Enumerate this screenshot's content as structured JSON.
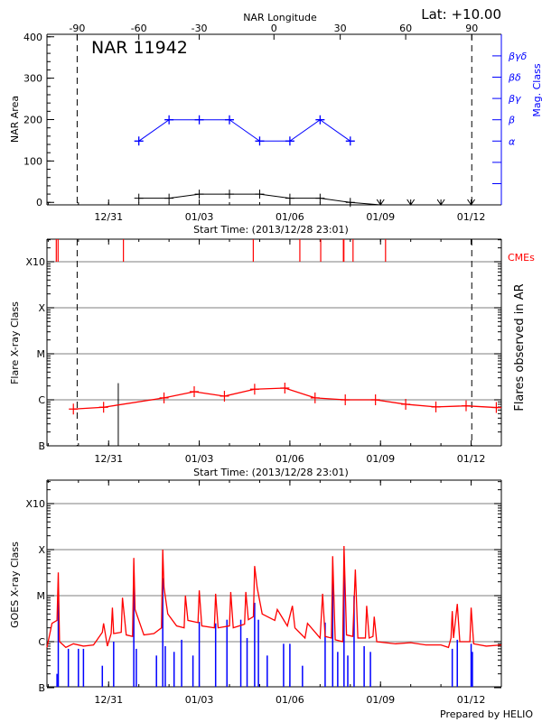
{
  "header": {
    "region_title": "NAR 11942",
    "latitude": "Lat: +10.00",
    "top_axis_label": "NAR Longitude",
    "footer": "Prepared by HELIO"
  },
  "colors": {
    "area": "#000000",
    "mag_class": "#0000ff",
    "flare": "#ff0000",
    "cme": "#ff0000",
    "goes_long": "#ff0000",
    "goes_short": "#0000ff",
    "grid": "#999999"
  },
  "chart_data": [
    {
      "type": "line",
      "panel": "nar",
      "xlabel": "Start Time: (2013/12/28 23:01)",
      "xlim": [
        "2013-12-28T23:01",
        "2014-01-13T00:00"
      ],
      "xticks": [
        {
          "label": "12/31",
          "time": "2013-12-31T00:00"
        },
        {
          "label": "01/03",
          "time": "2014-01-03T00:00"
        },
        {
          "label": "01/06",
          "time": "2014-01-06T00:00"
        },
        {
          "label": "01/09",
          "time": "2014-01-09T00:00"
        },
        {
          "label": "01/12",
          "time": "2014-01-12T00:00"
        }
      ],
      "top_axis": {
        "label": "NAR Longitude",
        "ticks": [
          {
            "label": "-90",
            "time": "2013-12-29T23:00"
          },
          {
            "label": "-60",
            "time": "2014-01-01T00:00"
          },
          {
            "label": "-30",
            "time": "2014-01-03T00:00"
          },
          {
            "label": "0",
            "time": "2014-01-05T11:20"
          },
          {
            "label": "30",
            "time": "2014-01-07T16:00"
          },
          {
            "label": "60",
            "time": "2014-01-09T20:00"
          },
          {
            "label": "90",
            "time": "2014-01-12T00:30"
          }
        ],
        "limb_lines": [
          "-90",
          "90"
        ]
      },
      "ylabel": "NAR Area",
      "ylim": [
        -6,
        406
      ],
      "yticks": [
        "0",
        "100",
        "200",
        "300",
        "400"
      ],
      "y2label": "Mag. Class",
      "y2ticks": [
        "α",
        "β",
        "βγ",
        "βδ",
        "βγδ"
      ],
      "dates": [
        "2014-01-01T00:00",
        "2014-01-02T00:00",
        "2014-01-03T00:00",
        "2014-01-04T00:00",
        "2014-01-05T00:00",
        "2014-01-06T00:00",
        "2014-01-07T00:00",
        "2014-01-08T00:00",
        "2014-01-09T00:00",
        "2014-01-10T00:00",
        "2014-01-11T00:00",
        "2014-01-12T00:00"
      ],
      "area": [
        10,
        10,
        20,
        20,
        20,
        10,
        10,
        0,
        null,
        null,
        null,
        null
      ],
      "mag_class": [
        "α",
        "β",
        "β",
        "β",
        "α",
        "α",
        "β",
        "α",
        null,
        null,
        null,
        null
      ]
    },
    {
      "type": "line",
      "panel": "flares",
      "xlabel": "Start Time: (2013/12/28 23:01)",
      "ylabel": "Flare X-ray Class",
      "y2label": "Flares observed in AR",
      "y_scale": "log",
      "ylim": [
        1e-07,
        0.0031
      ],
      "yticks": [
        {
          "label": "B",
          "value": 1e-07
        },
        {
          "label": "C",
          "value": 1e-06
        },
        {
          "label": "M",
          "value": 1e-05
        },
        {
          "label": "X",
          "value": 0.0001
        },
        {
          "label": "X10",
          "value": 0.001
        }
      ],
      "grid": true,
      "cme_label": "CMEs",
      "cmes": [
        "2013-12-29T06:25",
        "2013-12-29T07:50",
        "2013-12-31T11:45",
        "2014-01-04T18:55",
        "2014-01-06T07:55",
        "2014-01-07T00:30",
        "2014-01-07T18:30",
        "2014-01-07T18:55",
        "2014-01-08T02:10",
        "2014-01-09T04:00"
      ],
      "daily_flux": [
        [
          "2013-12-29T20:00",
          6.3e-07
        ],
        [
          "2013-12-30T20:00",
          6.9e-07
        ],
        [
          "2014-01-01T20:00",
          1.1e-06
        ],
        [
          "2014-01-02T20:00",
          1.5e-06
        ],
        [
          "2014-01-03T20:00",
          1.2e-06
        ],
        [
          "2014-01-04T20:00",
          1.7e-06
        ],
        [
          "2014-01-05T20:00",
          1.8e-06
        ],
        [
          "2014-01-06T20:00",
          1.1e-06
        ],
        [
          "2014-01-07T20:00",
          1e-06
        ],
        [
          "2014-01-08T20:00",
          1e-06
        ],
        [
          "2014-01-09T20:00",
          8e-07
        ],
        [
          "2014-01-10T20:00",
          7e-07
        ],
        [
          "2014-01-11T20:00",
          7.4e-07
        ],
        [
          "2014-01-12T20:00",
          6.8e-07
        ]
      ],
      "ar_flares": [
        [
          "2013-12-31T07:40",
          2.3e-06
        ]
      ]
    },
    {
      "type": "line",
      "panel": "goes",
      "xlabel": "",
      "ylabel": "GOES X-ray Class",
      "y_scale": "log",
      "ylim": [
        1e-07,
        0.0032
      ],
      "yticks": [
        {
          "label": "B",
          "value": 1e-07
        },
        {
          "label": "C",
          "value": 1e-06
        },
        {
          "label": "M",
          "value": 1e-05
        },
        {
          "label": "X",
          "value": 0.0001
        },
        {
          "label": "X10",
          "value": 0.001
        }
      ],
      "grid": true,
      "long_channel": [
        [
          "2013-12-28T23:01",
          7.5e-07
        ],
        [
          "2013-12-29T03:00",
          2.5e-06
        ],
        [
          "2013-12-29T07:00",
          2.9e-06
        ],
        [
          "2013-12-29T08:00",
          3.2e-05
        ],
        [
          "2013-12-29T09:00",
          1e-06
        ],
        [
          "2013-12-29T14:00",
          7.5e-07
        ],
        [
          "2013-12-29T20:00",
          9e-07
        ],
        [
          "2013-12-30T04:00",
          8e-07
        ],
        [
          "2013-12-30T12:00",
          8.5e-07
        ],
        [
          "2013-12-30T19:00",
          1.6e-06
        ],
        [
          "2013-12-30T20:00",
          2.5e-06
        ],
        [
          "2013-12-30T23:00",
          8e-07
        ],
        [
          "2013-12-31T02:00",
          1.5e-06
        ],
        [
          "2013-12-31T03:00",
          5.5e-06
        ],
        [
          "2013-12-31T04:00",
          1.5e-06
        ],
        [
          "2013-12-31T10:00",
          1.6e-06
        ],
        [
          "2013-12-31T11:00",
          9e-06
        ],
        [
          "2013-12-31T14:00",
          1.4e-06
        ],
        [
          "2013-12-31T19:00",
          1.3e-06
        ],
        [
          "2013-12-31T20:00",
          6.6e-05
        ],
        [
          "2013-12-31T21:00",
          5e-06
        ],
        [
          "2014-01-01T04:00",
          1.4e-06
        ],
        [
          "2014-01-01T12:00",
          1.5e-06
        ],
        [
          "2014-01-01T18:00",
          2e-06
        ],
        [
          "2014-01-01T19:00",
          0.0001
        ],
        [
          "2014-01-01T20:00",
          1.5e-05
        ],
        [
          "2014-01-01T23:00",
          4e-06
        ],
        [
          "2014-01-02T06:00",
          2.2e-06
        ],
        [
          "2014-01-02T12:00",
          2e-06
        ],
        [
          "2014-01-02T13:00",
          1e-05
        ],
        [
          "2014-01-02T15:00",
          2.9e-06
        ],
        [
          "2014-01-02T23:00",
          2.6e-06
        ],
        [
          "2014-01-03T00:00",
          1.3e-05
        ],
        [
          "2014-01-03T02:00",
          2.2e-06
        ],
        [
          "2014-01-03T12:00",
          2e-06
        ],
        [
          "2014-01-03T13:00",
          1.1e-05
        ],
        [
          "2014-01-03T15:00",
          2e-06
        ],
        [
          "2014-01-04T00:00",
          2.2e-06
        ],
        [
          "2014-01-04T01:00",
          1.2e-05
        ],
        [
          "2014-01-04T03:00",
          2e-06
        ],
        [
          "2014-01-04T12:00",
          2.4e-06
        ],
        [
          "2014-01-04T13:00",
          1.2e-05
        ],
        [
          "2014-01-04T15:00",
          3e-06
        ],
        [
          "2014-01-04T19:00",
          3.5e-06
        ],
        [
          "2014-01-04T20:00",
          4.4e-05
        ],
        [
          "2014-01-04T22:00",
          1.5e-05
        ],
        [
          "2014-01-05T02:00",
          4e-06
        ],
        [
          "2014-01-05T12:00",
          2.9e-06
        ],
        [
          "2014-01-05T14:00",
          5e-06
        ],
        [
          "2014-01-05T22:00",
          2.2e-06
        ],
        [
          "2014-01-06T02:00",
          6e-06
        ],
        [
          "2014-01-06T04:00",
          2e-06
        ],
        [
          "2014-01-06T12:00",
          1.2e-06
        ],
        [
          "2014-01-06T14:00",
          2.5e-06
        ],
        [
          "2014-01-07T00:00",
          1.2e-06
        ],
        [
          "2014-01-07T02:00",
          1.1e-05
        ],
        [
          "2014-01-07T04:00",
          1.3e-06
        ],
        [
          "2014-01-07T09:00",
          1.2e-06
        ],
        [
          "2014-01-07T10:00",
          7.2e-05
        ],
        [
          "2014-01-07T12:00",
          1.1e-06
        ],
        [
          "2014-01-07T18:00",
          1e-06
        ],
        [
          "2014-01-07T19:00",
          0.00012
        ],
        [
          "2014-01-07T21:00",
          1.4e-06
        ],
        [
          "2014-01-08T02:00",
          1.3e-06
        ],
        [
          "2014-01-08T04:00",
          3.7e-05
        ],
        [
          "2014-01-08T06:00",
          1.2e-06
        ],
        [
          "2014-01-08T12:00",
          1.2e-06
        ],
        [
          "2014-01-08T13:00",
          6e-06
        ],
        [
          "2014-01-08T15:00",
          1.2e-06
        ],
        [
          "2014-01-08T18:00",
          1.3e-06
        ],
        [
          "2014-01-08T19:00",
          3.5e-06
        ],
        [
          "2014-01-08T21:00",
          1e-06
        ],
        [
          "2014-01-09T12:00",
          9e-07
        ],
        [
          "2014-01-10T00:00",
          9.5e-07
        ],
        [
          "2014-01-10T12:00",
          8.5e-07
        ],
        [
          "2014-01-11T00:00",
          8.5e-07
        ],
        [
          "2014-01-11T06:00",
          7.5e-07
        ],
        [
          "2014-01-11T08:00",
          1.2e-06
        ],
        [
          "2014-01-11T09:00",
          4.6e-06
        ],
        [
          "2014-01-11T10:00",
          1.2e-06
        ],
        [
          "2014-01-11T13:00",
          6.6e-06
        ],
        [
          "2014-01-11T15:00",
          1e-06
        ],
        [
          "2014-01-11T23:00",
          1e-06
        ],
        [
          "2014-01-12T00:00",
          5.5e-06
        ],
        [
          "2014-01-12T02:00",
          9e-07
        ],
        [
          "2014-01-12T12:00",
          8e-07
        ],
        [
          "2014-01-13T00:00",
          8.5e-07
        ]
      ],
      "short_channel": [
        [
          "2013-12-29T07:00",
          2e-07
        ],
        [
          "2013-12-29T08:00",
          8.3e-06
        ],
        [
          "2013-12-29T16:00",
          7e-07
        ],
        [
          "2013-12-30T00:00",
          7e-07
        ],
        [
          "2013-12-30T04:00",
          7e-07
        ],
        [
          "2013-12-30T19:00",
          3e-07
        ],
        [
          "2013-12-31T04:00",
          1e-06
        ],
        [
          "2013-12-31T20:00",
          1.9e-05
        ],
        [
          "2013-12-31T22:00",
          7e-07
        ],
        [
          "2014-01-01T14:00",
          5e-07
        ],
        [
          "2014-01-01T19:00",
          2.4e-05
        ],
        [
          "2014-01-01T21:00",
          8e-07
        ],
        [
          "2014-01-02T04:00",
          6e-07
        ],
        [
          "2014-01-02T10:00",
          1.1e-06
        ],
        [
          "2014-01-02T19:00",
          5e-07
        ],
        [
          "2014-01-03T00:00",
          2.7e-06
        ],
        [
          "2014-01-03T13:00",
          2.5e-06
        ],
        [
          "2014-01-03T22:00",
          3e-06
        ],
        [
          "2014-01-04T09:00",
          3e-06
        ],
        [
          "2014-01-04T14:00",
          1.2e-06
        ],
        [
          "2014-01-04T20:00",
          7e-06
        ],
        [
          "2014-01-04T23:00",
          3e-06
        ],
        [
          "2014-01-05T06:00",
          5e-07
        ],
        [
          "2014-01-05T19:00",
          9e-07
        ],
        [
          "2014-01-06T00:00",
          9e-07
        ],
        [
          "2014-01-06T10:00",
          3e-07
        ],
        [
          "2014-01-07T04:00",
          2.6e-06
        ],
        [
          "2014-01-07T10:00",
          2.4e-05
        ],
        [
          "2014-01-07T14:00",
          6e-07
        ],
        [
          "2014-01-07T19:00",
          3e-05
        ],
        [
          "2014-01-07T22:00",
          5e-07
        ],
        [
          "2014-01-08T03:00",
          1e-05
        ],
        [
          "2014-01-08T11:00",
          8e-07
        ],
        [
          "2014-01-08T16:00",
          6e-07
        ],
        [
          "2014-01-11T09:00",
          7e-07
        ],
        [
          "2014-01-11T13:00",
          1.1e-06
        ],
        [
          "2014-01-12T00:00",
          9e-07
        ],
        [
          "2014-01-12T01:00",
          6e-07
        ]
      ]
    }
  ]
}
